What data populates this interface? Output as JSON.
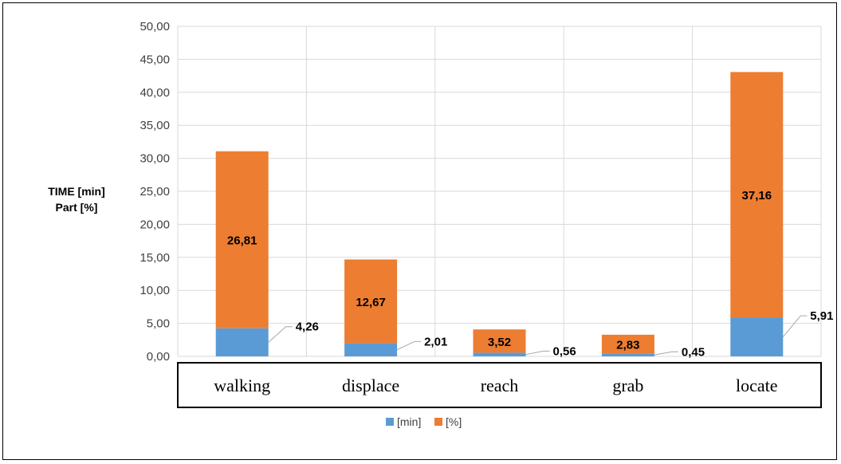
{
  "chart_data": {
    "type": "bar",
    "stacked": true,
    "categories": [
      "walking",
      "displace",
      "reach",
      "grab",
      "locate"
    ],
    "series": [
      {
        "name": "[min]",
        "values": [
          4.26,
          2.01,
          0.56,
          0.45,
          5.91
        ],
        "color": "#5B9BD5"
      },
      {
        "name": "[%]",
        "values": [
          26.81,
          12.67,
          3.52,
          2.83,
          37.16
        ],
        "color": "#ED7D31"
      }
    ],
    "ylabel_lines": [
      "TIME [min]",
      "Part [%]"
    ],
    "ylim": [
      0,
      50
    ],
    "yticks": [
      "0,00",
      "5,00",
      "10,00",
      "15,00",
      "20,00",
      "25,00",
      "30,00",
      "35,00",
      "40,00",
      "45,00",
      "50,00"
    ],
    "data_labels": {
      "min": [
        "4,26",
        "2,01",
        "0,56",
        "0,45",
        "5,91"
      ],
      "pct": [
        "26,81",
        "12,67",
        "3,52",
        "2,83",
        "37,16"
      ]
    },
    "grid": true,
    "legend_position": "bottom"
  }
}
